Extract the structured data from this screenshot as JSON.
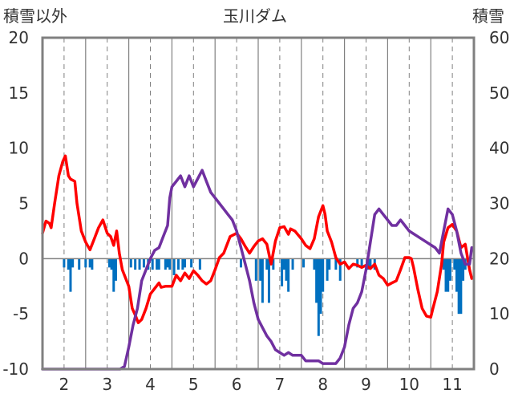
{
  "chart_data": {
    "type": "line",
    "title": "玉川ダム",
    "left_axis_label": "積雪以外",
    "right_axis_label": "積雪",
    "left_ylim": [
      -10,
      20
    ],
    "left_ticks": [
      20,
      15,
      10,
      5,
      0,
      -5,
      -10
    ],
    "right_ylim": [
      0,
      60
    ],
    "right_ticks": [
      60,
      50,
      40,
      30,
      20,
      10,
      0
    ],
    "xlim": [
      1.5,
      11.5
    ],
    "x_ticks": [
      {
        "value": 2,
        "label": "2"
      },
      {
        "value": 3,
        "label": "3"
      },
      {
        "value": 4,
        "label": "4"
      },
      {
        "value": 5,
        "label": "5"
      },
      {
        "value": 6,
        "label": "6"
      },
      {
        "value": 7,
        "label": "7"
      },
      {
        "value": 8,
        "label": "8"
      },
      {
        "value": 9,
        "label": "9"
      },
      {
        "value": 10,
        "label": "10"
      },
      {
        "value": 11,
        "label": "11"
      }
    ],
    "grid": {
      "solid_x": [
        2.5,
        3.5,
        4.5,
        5.5,
        6.5,
        7.5,
        8.5,
        9.5,
        10.5
      ],
      "dashed_x": [
        2,
        3,
        4,
        5,
        6,
        7,
        8,
        9,
        10,
        11
      ]
    },
    "colors": {
      "red": "#ff0000",
      "purple": "#7030a0",
      "bars": "#0070c0",
      "grid": "#808080",
      "frame": "#808080"
    },
    "series": [
      {
        "axis": "left",
        "color": "#ff0000",
        "points": [
          [
            1.5,
            2.3
          ],
          [
            1.58,
            3.4
          ],
          [
            1.66,
            3.2
          ],
          [
            1.7,
            2.8
          ],
          [
            1.78,
            5.0
          ],
          [
            1.88,
            7.5
          ],
          [
            1.97,
            8.8
          ],
          [
            2.03,
            9.3
          ],
          [
            2.1,
            7.5
          ],
          [
            2.15,
            7.2
          ],
          [
            2.25,
            7.0
          ],
          [
            2.3,
            5.0
          ],
          [
            2.4,
            2.5
          ],
          [
            2.5,
            1.5
          ],
          [
            2.6,
            0.8
          ],
          [
            2.7,
            1.8
          ],
          [
            2.8,
            2.8
          ],
          [
            2.9,
            3.5
          ],
          [
            3.0,
            2.3
          ],
          [
            3.08,
            2.0
          ],
          [
            3.15,
            1.2
          ],
          [
            3.22,
            2.5
          ],
          [
            3.28,
            0.5
          ],
          [
            3.35,
            -1.0
          ],
          [
            3.5,
            -2.5
          ],
          [
            3.58,
            -4.5
          ],
          [
            3.66,
            -5.2
          ],
          [
            3.72,
            -5.8
          ],
          [
            3.8,
            -5.5
          ],
          [
            3.9,
            -4.5
          ],
          [
            4.0,
            -3.2
          ],
          [
            4.1,
            -2.7
          ],
          [
            4.2,
            -2.2
          ],
          [
            4.25,
            -2.6
          ],
          [
            4.35,
            -2.5
          ],
          [
            4.5,
            -2.5
          ],
          [
            4.6,
            -1.5
          ],
          [
            4.7,
            -2.0
          ],
          [
            4.8,
            -1.3
          ],
          [
            4.9,
            -1.8
          ],
          [
            5.0,
            -1.1
          ],
          [
            5.1,
            -1.5
          ],
          [
            5.2,
            -2.0
          ],
          [
            5.3,
            -2.3
          ],
          [
            5.4,
            -2.0
          ],
          [
            5.5,
            -1.0
          ],
          [
            5.6,
            0.1
          ],
          [
            5.7,
            0.5
          ],
          [
            5.85,
            2.0
          ],
          [
            6.0,
            2.3
          ],
          [
            6.1,
            1.8
          ],
          [
            6.2,
            1.1
          ],
          [
            6.3,
            0.5
          ],
          [
            6.4,
            1.1
          ],
          [
            6.5,
            1.6
          ],
          [
            6.6,
            1.8
          ],
          [
            6.7,
            1.3
          ],
          [
            6.8,
            -0.5
          ],
          [
            6.9,
            1.6
          ],
          [
            7.0,
            2.8
          ],
          [
            7.1,
            2.9
          ],
          [
            7.2,
            2.2
          ],
          [
            7.25,
            2.7
          ],
          [
            7.35,
            2.5
          ],
          [
            7.5,
            1.8
          ],
          [
            7.6,
            1.2
          ],
          [
            7.7,
            0.9
          ],
          [
            7.8,
            1.8
          ],
          [
            7.9,
            3.8
          ],
          [
            8.0,
            4.8
          ],
          [
            8.05,
            4.0
          ],
          [
            8.1,
            2.5
          ],
          [
            8.2,
            1.5
          ],
          [
            8.3,
            0.1
          ],
          [
            8.4,
            -0.5
          ],
          [
            8.5,
            -0.3
          ],
          [
            8.6,
            -0.9
          ],
          [
            8.7,
            -0.5
          ],
          [
            8.8,
            -0.6
          ],
          [
            8.9,
            -0.8
          ],
          [
            9.0,
            -0.6
          ],
          [
            9.1,
            -0.9
          ],
          [
            9.2,
            -0.5
          ],
          [
            9.3,
            -1.5
          ],
          [
            9.4,
            -1.8
          ],
          [
            9.5,
            -2.4
          ],
          [
            9.6,
            -2.2
          ],
          [
            9.7,
            -2.0
          ],
          [
            9.8,
            -1.0
          ],
          [
            9.9,
            0.1
          ],
          [
            10.0,
            0.1
          ],
          [
            10.05,
            0.0
          ],
          [
            10.1,
            -0.8
          ],
          [
            10.2,
            -2.8
          ],
          [
            10.3,
            -4.5
          ],
          [
            10.4,
            -5.2
          ],
          [
            10.5,
            -5.3
          ],
          [
            10.55,
            -4.5
          ],
          [
            10.65,
            -3.0
          ],
          [
            10.75,
            -0.5
          ],
          [
            10.8,
            1.5
          ],
          [
            10.9,
            2.8
          ],
          [
            11.0,
            3.1
          ],
          [
            11.1,
            2.5
          ],
          [
            11.2,
            1.0
          ],
          [
            11.3,
            1.3
          ],
          [
            11.4,
            -1.0
          ],
          [
            11.45,
            -1.8
          ]
        ]
      },
      {
        "axis": "right",
        "color": "#7030a0",
        "points": [
          [
            1.5,
            0
          ],
          [
            2.0,
            0
          ],
          [
            3.3,
            0
          ],
          [
            3.4,
            0.5
          ],
          [
            3.5,
            4
          ],
          [
            3.6,
            8
          ],
          [
            3.7,
            11
          ],
          [
            3.8,
            16
          ],
          [
            3.9,
            18
          ],
          [
            4.0,
            20
          ],
          [
            4.1,
            21.5
          ],
          [
            4.2,
            22
          ],
          [
            4.3,
            24
          ],
          [
            4.4,
            26
          ],
          [
            4.45,
            31
          ],
          [
            4.5,
            33
          ],
          [
            4.6,
            34
          ],
          [
            4.7,
            35
          ],
          [
            4.8,
            33
          ],
          [
            4.9,
            35
          ],
          [
            5.0,
            33
          ],
          [
            5.1,
            34.5
          ],
          [
            5.2,
            36
          ],
          [
            5.3,
            34
          ],
          [
            5.4,
            32
          ],
          [
            5.5,
            31
          ],
          [
            5.6,
            30
          ],
          [
            5.7,
            29
          ],
          [
            5.8,
            28
          ],
          [
            5.9,
            27
          ],
          [
            6.0,
            25
          ],
          [
            6.1,
            22
          ],
          [
            6.2,
            19
          ],
          [
            6.3,
            16
          ],
          [
            6.4,
            12
          ],
          [
            6.5,
            9
          ],
          [
            6.6,
            7.5
          ],
          [
            6.7,
            6
          ],
          [
            6.8,
            5
          ],
          [
            6.9,
            3.5
          ],
          [
            7.0,
            3
          ],
          [
            7.1,
            2.5
          ],
          [
            7.2,
            3
          ],
          [
            7.3,
            2.5
          ],
          [
            7.4,
            2.5
          ],
          [
            7.5,
            2.5
          ],
          [
            7.6,
            1.5
          ],
          [
            7.7,
            1.5
          ],
          [
            7.8,
            1.5
          ],
          [
            7.9,
            1.5
          ],
          [
            8.0,
            1
          ],
          [
            8.2,
            1
          ],
          [
            8.3,
            1
          ],
          [
            8.4,
            2
          ],
          [
            8.5,
            4
          ],
          [
            8.6,
            8
          ],
          [
            8.7,
            11
          ],
          [
            8.8,
            12
          ],
          [
            8.9,
            14
          ],
          [
            9.0,
            18
          ],
          [
            9.1,
            23
          ],
          [
            9.2,
            28
          ],
          [
            9.3,
            29
          ],
          [
            9.4,
            28
          ],
          [
            9.5,
            27
          ],
          [
            9.6,
            26
          ],
          [
            9.7,
            26
          ],
          [
            9.8,
            27
          ],
          [
            9.9,
            26
          ],
          [
            10.0,
            25
          ],
          [
            10.2,
            24
          ],
          [
            10.4,
            23
          ],
          [
            10.6,
            22
          ],
          [
            10.7,
            21
          ],
          [
            10.8,
            25
          ],
          [
            10.9,
            29
          ],
          [
            11.0,
            28
          ],
          [
            11.1,
            25
          ],
          [
            11.2,
            21
          ],
          [
            11.3,
            19
          ],
          [
            11.4,
            19
          ],
          [
            11.45,
            22
          ]
        ]
      }
    ],
    "bars": {
      "axis": "left",
      "color": "#0070c0",
      "values": [
        [
          2.0,
          -0.8
        ],
        [
          2.1,
          -1.0
        ],
        [
          2.15,
          -3.0
        ],
        [
          2.2,
          -0.8
        ],
        [
          2.35,
          -1.0
        ],
        [
          2.5,
          -0.8
        ],
        [
          2.6,
          -0.8
        ],
        [
          2.65,
          -1.0
        ],
        [
          3.05,
          -0.8
        ],
        [
          3.1,
          -1.0
        ],
        [
          3.15,
          -3.0
        ],
        [
          3.2,
          -2.0
        ],
        [
          3.55,
          -0.8
        ],
        [
          3.65,
          -1.0
        ],
        [
          3.75,
          -1.0
        ],
        [
          3.85,
          -0.8
        ],
        [
          3.95,
          -1.0
        ],
        [
          4.05,
          -1.0
        ],
        [
          4.15,
          -1.0
        ],
        [
          4.2,
          -1.0
        ],
        [
          4.35,
          -1.0
        ],
        [
          4.4,
          -0.8
        ],
        [
          4.45,
          -1.0
        ],
        [
          4.55,
          -1.5
        ],
        [
          4.65,
          -1.0
        ],
        [
          4.75,
          -1.0
        ],
        [
          4.8,
          -0.8
        ],
        [
          4.95,
          -0.8
        ],
        [
          5.15,
          -1.0
        ],
        [
          6.1,
          -0.8
        ],
        [
          6.45,
          -2.0
        ],
        [
          6.55,
          -2.0
        ],
        [
          6.6,
          -4.0
        ],
        [
          6.7,
          -1.0
        ],
        [
          6.75,
          -4.0
        ],
        [
          6.85,
          -1.0
        ],
        [
          7.05,
          -2.5
        ],
        [
          7.1,
          -1.0
        ],
        [
          7.15,
          -2.0
        ],
        [
          7.2,
          -3.0
        ],
        [
          7.3,
          -1.0
        ],
        [
          7.55,
          -0.8
        ],
        [
          7.8,
          -1.0
        ],
        [
          7.85,
          -4.0
        ],
        [
          7.9,
          -7.0
        ],
        [
          7.95,
          -5.0
        ],
        [
          8.0,
          -3.0
        ],
        [
          8.1,
          -2.0
        ],
        [
          8.15,
          -1.0
        ],
        [
          8.3,
          -1.0
        ],
        [
          8.4,
          -2.0
        ],
        [
          8.8,
          -0.8
        ],
        [
          8.9,
          -0.8
        ],
        [
          9.05,
          -1.0
        ],
        [
          9.1,
          -0.8
        ],
        [
          9.2,
          -1.0
        ],
        [
          10.8,
          -1.0
        ],
        [
          10.85,
          -3.0
        ],
        [
          10.9,
          -3.0
        ],
        [
          10.95,
          -2.0
        ],
        [
          11.05,
          -1.0
        ],
        [
          11.1,
          -3.0
        ],
        [
          11.15,
          -5.0
        ],
        [
          11.2,
          -5.0
        ],
        [
          11.25,
          -2.0
        ],
        [
          11.3,
          -1.0
        ]
      ]
    }
  }
}
